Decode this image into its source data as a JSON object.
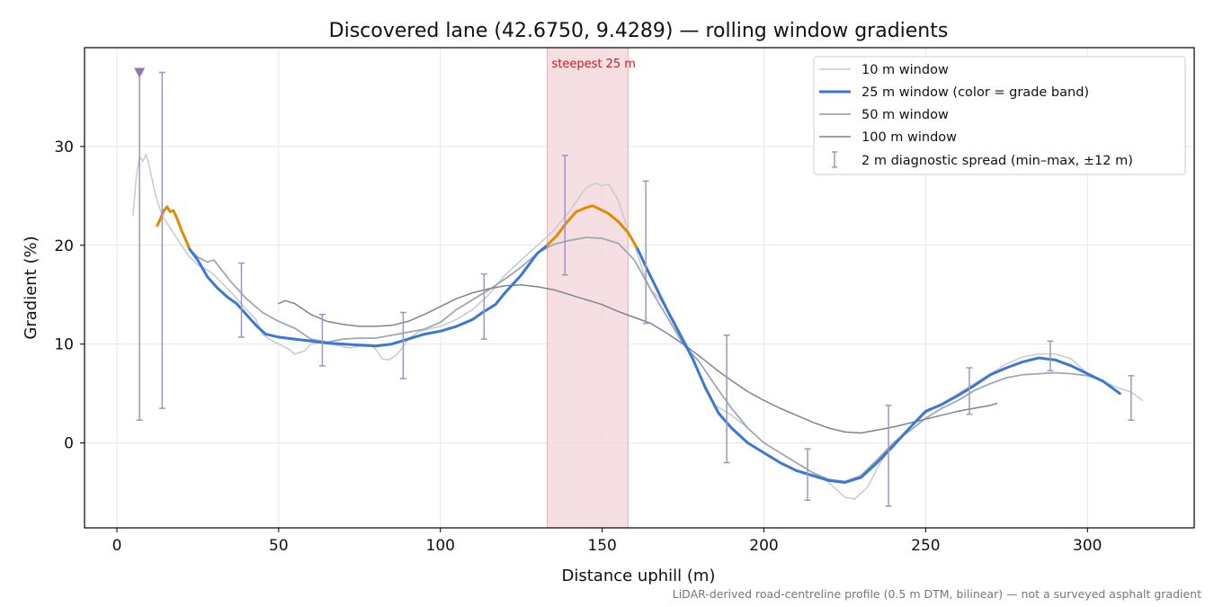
{
  "chart_data": {
    "type": "line",
    "title": "Discovered lane (42.6750, 9.4289) — rolling window gradients",
    "xlabel": "Distance uphill (m)",
    "ylabel": "Gradient (%)",
    "xlim": [
      -10,
      333
    ],
    "ylim": [
      -8.6,
      40
    ],
    "x_ticks": [
      0,
      50,
      100,
      150,
      200,
      250,
      300
    ],
    "y_ticks": [
      0,
      10,
      20,
      30
    ],
    "grid": true,
    "legend_placement": "top-right",
    "footnote": "LiDAR-derived road-centreline profile (0.5 m DTM, bilinear) — not a surveyed asphalt gradient",
    "highlight": {
      "x_start": 133,
      "x_end": 158,
      "label": "steepest 25 m",
      "color": "#f2d4d8"
    },
    "grade_band_colors": {
      "moderate": "#3a78d4",
      "steep": "#e08a00"
    },
    "series": [
      {
        "name": "10 m window",
        "color": "#c6cad3",
        "points": [
          [
            5,
            23
          ],
          [
            6,
            27
          ],
          [
            7,
            29
          ],
          [
            8,
            28.5
          ],
          [
            9,
            29.2
          ],
          [
            10,
            28
          ],
          [
            12,
            25
          ],
          [
            14,
            23
          ],
          [
            16,
            22
          ],
          [
            18,
            21
          ],
          [
            20,
            20
          ],
          [
            22,
            19
          ],
          [
            25,
            18
          ],
          [
            28,
            17.5
          ],
          [
            30,
            17
          ],
          [
            33,
            16
          ],
          [
            36,
            15
          ],
          [
            40,
            13.5
          ],
          [
            43,
            12.5
          ],
          [
            45,
            11
          ],
          [
            47,
            10.5
          ],
          [
            50,
            10
          ],
          [
            53,
            9.5
          ],
          [
            55,
            9
          ],
          [
            58,
            9.3
          ],
          [
            60,
            10
          ],
          [
            63,
            10.2
          ],
          [
            66,
            10
          ],
          [
            69,
            9.8
          ],
          [
            72,
            9.6
          ],
          [
            75,
            9.8
          ],
          [
            78,
            10
          ],
          [
            80,
            9.5
          ],
          [
            82,
            8.5
          ],
          [
            84,
            8.4
          ],
          [
            86,
            8.8
          ],
          [
            88,
            9.5
          ],
          [
            90,
            10.5
          ],
          [
            93,
            11.2
          ],
          [
            96,
            11.5
          ],
          [
            100,
            11.8
          ],
          [
            105,
            12.5
          ],
          [
            110,
            13.5
          ],
          [
            115,
            15
          ],
          [
            120,
            17
          ],
          [
            125,
            18.5
          ],
          [
            130,
            20
          ],
          [
            135,
            21.5
          ],
          [
            140,
            23.5
          ],
          [
            145,
            25.8
          ],
          [
            148,
            26.3
          ],
          [
            150,
            26
          ],
          [
            152,
            26.2
          ],
          [
            155,
            24.5
          ],
          [
            158,
            21.5
          ],
          [
            160,
            20
          ],
          [
            163,
            17
          ],
          [
            165,
            15.5
          ],
          [
            168,
            14.5
          ],
          [
            172,
            12.5
          ],
          [
            176,
            10
          ],
          [
            180,
            7
          ],
          [
            185,
            3.8
          ],
          [
            190,
            2.8
          ],
          [
            195,
            1.5
          ],
          [
            200,
            0
          ],
          [
            205,
            -1
          ],
          [
            210,
            -2
          ],
          [
            215,
            -3
          ],
          [
            220,
            -4
          ],
          [
            225,
            -5.5
          ],
          [
            228,
            -5.7
          ],
          [
            232,
            -4.5
          ],
          [
            236,
            -2
          ],
          [
            240,
            0
          ],
          [
            245,
            1.5
          ],
          [
            250,
            3
          ],
          [
            255,
            4
          ],
          [
            260,
            5
          ],
          [
            265,
            6
          ],
          [
            270,
            7
          ],
          [
            275,
            8
          ],
          [
            280,
            8.7
          ],
          [
            285,
            9
          ],
          [
            290,
            9
          ],
          [
            295,
            8.5
          ],
          [
            300,
            7
          ],
          [
            305,
            6.2
          ],
          [
            310,
            5.5
          ],
          [
            313,
            5.2
          ],
          [
            315,
            4.8
          ],
          [
            317,
            4.3
          ]
        ]
      },
      {
        "name": "25 m window (color = grade band)",
        "color": "#3a78d4",
        "color_by_grade_band": true,
        "points": [
          [
            12.5,
            22
          ],
          [
            13.5,
            22.7
          ],
          [
            14.5,
            23.5
          ],
          [
            15.5,
            23.9
          ],
          [
            16.5,
            23.4
          ],
          [
            17.5,
            23.5
          ],
          [
            18.5,
            22.8
          ],
          [
            20,
            21.5
          ],
          [
            21.5,
            20.4
          ],
          [
            22.5,
            19.6
          ],
          [
            25,
            18.5
          ],
          [
            28,
            16.8
          ],
          [
            31,
            15.7
          ],
          [
            34,
            14.8
          ],
          [
            37,
            14.1
          ],
          [
            40,
            13
          ],
          [
            43,
            11.9
          ],
          [
            46,
            11
          ],
          [
            50,
            10.7
          ],
          [
            55,
            10.5
          ],
          [
            60,
            10.3
          ],
          [
            65,
            10.1
          ],
          [
            70,
            10
          ],
          [
            75,
            9.9
          ],
          [
            80,
            9.8
          ],
          [
            85,
            10
          ],
          [
            90,
            10.5
          ],
          [
            95,
            11
          ],
          [
            100,
            11.3
          ],
          [
            105,
            11.8
          ],
          [
            110,
            12.5
          ],
          [
            113,
            13.2
          ],
          [
            117,
            14
          ],
          [
            120,
            15.2
          ],
          [
            125,
            17
          ],
          [
            130,
            19.2
          ],
          [
            133,
            20
          ],
          [
            136,
            21
          ],
          [
            139,
            22.3
          ],
          [
            142,
            23.4
          ],
          [
            145,
            23.8
          ],
          [
            147,
            24
          ],
          [
            149,
            23.7
          ],
          [
            152,
            23.2
          ],
          [
            155,
            22.4
          ],
          [
            158,
            21.3
          ],
          [
            161,
            19.6
          ],
          [
            164,
            17.5
          ],
          [
            167,
            15.5
          ],
          [
            170,
            13.5
          ],
          [
            174,
            11
          ],
          [
            178,
            8.5
          ],
          [
            182,
            5.5
          ],
          [
            186,
            3
          ],
          [
            190,
            1.5
          ],
          [
            195,
            0
          ],
          [
            200,
            -1
          ],
          [
            205,
            -2
          ],
          [
            210,
            -2.8
          ],
          [
            215,
            -3.3
          ],
          [
            220,
            -3.8
          ],
          [
            225,
            -4
          ],
          [
            230,
            -3.5
          ],
          [
            235,
            -2
          ],
          [
            240,
            -0.3
          ],
          [
            245,
            1.5
          ],
          [
            250,
            3.2
          ],
          [
            255,
            3.9
          ],
          [
            260,
            4.8
          ],
          [
            265,
            5.8
          ],
          [
            270,
            6.9
          ],
          [
            275,
            7.6
          ],
          [
            280,
            8.2
          ],
          [
            285,
            8.6
          ],
          [
            290,
            8.4
          ],
          [
            295,
            7.8
          ],
          [
            300,
            7
          ],
          [
            305,
            6.2
          ],
          [
            310,
            5
          ]
        ]
      },
      {
        "name": "50 m window",
        "color": "#a0a7b4",
        "points": [
          [
            22,
            19.8
          ],
          [
            25,
            18.8
          ],
          [
            28,
            18.3
          ],
          [
            30,
            18.5
          ],
          [
            35,
            16.4
          ],
          [
            40,
            14.6
          ],
          [
            45,
            13.2
          ],
          [
            50,
            12.3
          ],
          [
            55,
            11.6
          ],
          [
            60,
            10.5
          ],
          [
            65,
            10.2
          ],
          [
            70,
            10.5
          ],
          [
            75,
            10.6
          ],
          [
            80,
            10.6
          ],
          [
            85,
            10.9
          ],
          [
            90,
            11.2
          ],
          [
            95,
            11.5
          ],
          [
            100,
            12.2
          ],
          [
            105,
            13.5
          ],
          [
            110,
            14.5
          ],
          [
            115,
            15.5
          ],
          [
            120,
            16.6
          ],
          [
            125,
            17.8
          ],
          [
            130,
            19.2
          ],
          [
            135,
            20.1
          ],
          [
            140,
            20.5
          ],
          [
            145,
            20.8
          ],
          [
            150,
            20.7
          ],
          [
            155,
            20.2
          ],
          [
            160,
            18.5
          ],
          [
            165,
            15.5
          ],
          [
            170,
            12.8
          ],
          [
            175,
            10
          ],
          [
            180,
            8.2
          ],
          [
            185,
            5.8
          ],
          [
            190,
            3.5
          ],
          [
            195,
            1.5
          ],
          [
            200,
            0
          ],
          [
            205,
            -1
          ],
          [
            210,
            -2
          ],
          [
            215,
            -3
          ],
          [
            220,
            -3.7
          ],
          [
            225,
            -3.9
          ],
          [
            230,
            -3.3
          ],
          [
            235,
            -1.7
          ],
          [
            240,
            0
          ],
          [
            245,
            1.2
          ],
          [
            250,
            2.5
          ],
          [
            255,
            3.5
          ],
          [
            260,
            4.3
          ],
          [
            265,
            5.3
          ],
          [
            270,
            6
          ],
          [
            275,
            6.6
          ],
          [
            280,
            6.9
          ],
          [
            285,
            7
          ],
          [
            290,
            7.1
          ],
          [
            295,
            7
          ],
          [
            300,
            6.8
          ],
          [
            305,
            6.3
          ]
        ]
      },
      {
        "name": "100 m window",
        "color": "#7d8391",
        "points": [
          [
            50,
            14.1
          ],
          [
            52,
            14.4
          ],
          [
            55,
            14.1
          ],
          [
            60,
            13
          ],
          [
            65,
            12.3
          ],
          [
            70,
            12
          ],
          [
            75,
            11.8
          ],
          [
            80,
            11.8
          ],
          [
            85,
            11.9
          ],
          [
            90,
            12.3
          ],
          [
            95,
            13
          ],
          [
            100,
            13.8
          ],
          [
            105,
            14.6
          ],
          [
            110,
            15.2
          ],
          [
            115,
            15.6
          ],
          [
            120,
            15.9
          ],
          [
            125,
            16
          ],
          [
            130,
            15.8
          ],
          [
            135,
            15.5
          ],
          [
            140,
            15
          ],
          [
            145,
            14.5
          ],
          [
            150,
            14
          ],
          [
            155,
            13.3
          ],
          [
            160,
            12.7
          ],
          [
            165,
            12.1
          ],
          [
            170,
            11.1
          ],
          [
            175,
            10
          ],
          [
            180,
            8.8
          ],
          [
            185,
            7.5
          ],
          [
            190,
            6.3
          ],
          [
            195,
            5.2
          ],
          [
            200,
            4.3
          ],
          [
            205,
            3.5
          ],
          [
            210,
            2.8
          ],
          [
            215,
            2.1
          ],
          [
            220,
            1.5
          ],
          [
            225,
            1.1
          ],
          [
            230,
            1
          ],
          [
            235,
            1.3
          ],
          [
            240,
            1.6
          ],
          [
            245,
            2
          ],
          [
            250,
            2.4
          ],
          [
            255,
            2.8
          ],
          [
            260,
            3.2
          ],
          [
            265,
            3.5
          ],
          [
            270,
            3.8
          ],
          [
            272,
            4
          ]
        ]
      }
    ],
    "error_bars": {
      "name": "2 m diagnostic spread (min–max, ±12 m)",
      "color": "#9d97c0",
      "points": [
        [
          7,
          2.3,
          37.5
        ],
        [
          14,
          3.5,
          37.5
        ],
        [
          38.5,
          10.7,
          18.2
        ],
        [
          63.5,
          7.8,
          13
        ],
        [
          88.5,
          6.5,
          13.2
        ],
        [
          113.5,
          10.5,
          17.1
        ],
        [
          138.5,
          17,
          29.1
        ],
        [
          163.5,
          12.1,
          26.5
        ],
        [
          188.5,
          -2,
          10.9
        ],
        [
          213.5,
          -5.8,
          -0.6
        ],
        [
          238.5,
          -6.4,
          3.8
        ],
        [
          263.5,
          2.9,
          7.6
        ],
        [
          288.5,
          7.3,
          10.3
        ],
        [
          313.5,
          2.3,
          6.8
        ]
      ]
    },
    "marker": {
      "x": 7,
      "y": 37.5,
      "shape": "triangle-down",
      "color": "#8d78b4"
    }
  }
}
